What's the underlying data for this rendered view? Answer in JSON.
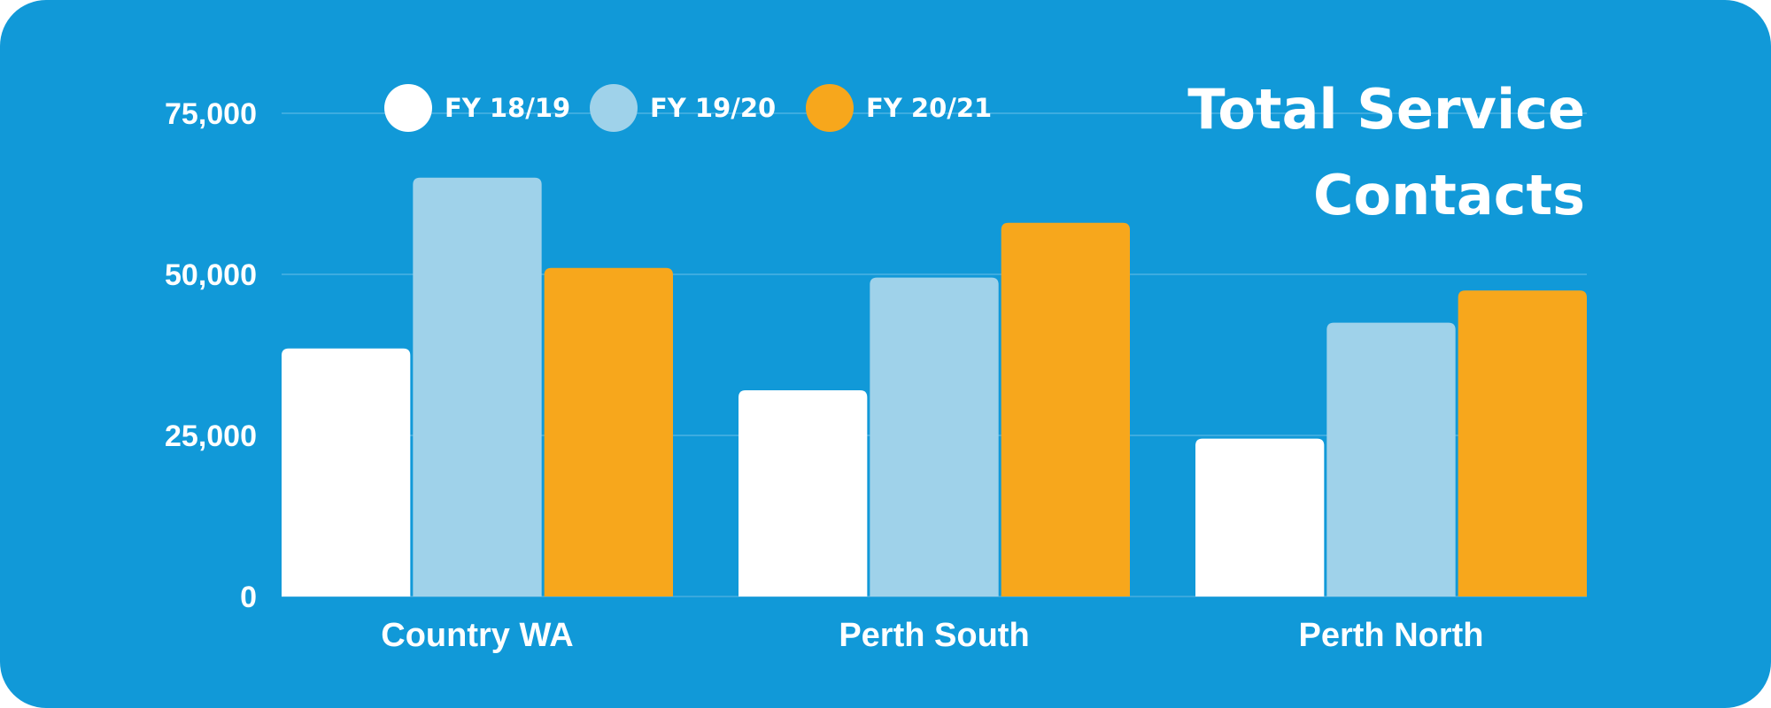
{
  "colors": {
    "background": "#1199d8",
    "gridline": "#4cb2e3",
    "baseline": "#3aa8dd"
  },
  "chart_data": {
    "type": "bar",
    "title_lines": [
      "Total Service",
      "Contacts"
    ],
    "xlabel": "",
    "ylabel": "",
    "categories": [
      "Country WA",
      "Perth South",
      "Perth North"
    ],
    "series": [
      {
        "name": "FY 18/19",
        "color": "#ffffff",
        "values": [
          38500,
          32000,
          24500
        ]
      },
      {
        "name": "FY 19/20",
        "color": "#9fd2ea",
        "values": [
          65000,
          49500,
          42500
        ]
      },
      {
        "name": "FY 20/21",
        "color": "#f7a71c",
        "values": [
          51000,
          58000,
          47500
        ]
      }
    ],
    "ylim": [
      0,
      75000
    ],
    "yticks": [
      0,
      25000,
      50000,
      75000
    ],
    "ytick_labels": [
      "0",
      "25,000",
      "50,000",
      "75,000"
    ],
    "grid": true,
    "legend_position": "top"
  }
}
